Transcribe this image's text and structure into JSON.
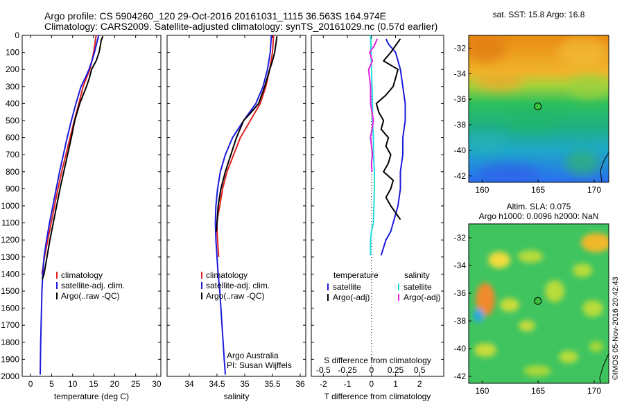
{
  "header": {
    "line1": "Argo profile: CS 5904260_120 29-Oct-2016 20161031_1115 36.563S 164.974E",
    "line2": "Climatology: CARS2009. Satellite-adjusted climatology: synTS_20161029.nc (0.57d earlier)"
  },
  "credits": {
    "org": "Argo Australia",
    "pi": "PI: Susan Wijffels",
    "stamp": "©IMOS 05-Nov-2016 20:42:43"
  },
  "colors": {
    "climatology": "#e02020",
    "satellite": "#1a1adc",
    "argo": "#000000",
    "satellite_salinity": "#22dede",
    "argo_salinity": "#e020e0"
  },
  "chart_data": [
    {
      "id": "temperature",
      "type": "line",
      "xlabel": "temperature (deg C)",
      "ylabel": "",
      "xlim": [
        -2,
        31
      ],
      "ylim": [
        2000,
        0
      ],
      "xticks": [
        0,
        5,
        10,
        15,
        20,
        25,
        30
      ],
      "yticks": [
        0,
        100,
        200,
        300,
        400,
        500,
        600,
        700,
        800,
        900,
        1000,
        1100,
        1200,
        1300,
        1400,
        1500,
        1600,
        1700,
        1800,
        1900,
        2000
      ],
      "legend": [
        "climatology",
        "satellite-adj. clim.",
        "Argo(..raw -QC)"
      ],
      "series": [
        {
          "name": "climatology",
          "color": "climatology",
          "x": [
            15.6,
            15.3,
            15.0,
            14.6,
            14.1,
            13.3,
            12.5,
            11.5,
            10.4,
            9.4,
            8.4,
            7.4,
            6.5,
            5.7,
            4.9,
            4.1,
            3.3,
            2.7
          ],
          "y": [
            0,
            50,
            100,
            150,
            200,
            250,
            300,
            400,
            500,
            600,
            700,
            800,
            900,
            1000,
            1100,
            1200,
            1300,
            1400
          ]
        },
        {
          "name": "satellite-adj. clim.",
          "color": "satellite",
          "x": [
            16.2,
            15.7,
            15.2,
            14.6,
            13.9,
            13.0,
            12.0,
            10.8,
            9.7,
            8.7,
            7.8,
            6.9,
            6.1,
            5.3,
            4.5,
            3.8,
            3.2,
            2.9,
            2.7,
            2.6,
            2.5,
            2.4,
            2.3
          ],
          "y": [
            0,
            50,
            100,
            150,
            200,
            250,
            300,
            400,
            500,
            600,
            700,
            800,
            900,
            1000,
            1100,
            1200,
            1300,
            1400,
            1500,
            1600,
            1700,
            1800,
            1990
          ]
        },
        {
          "name": "Argo(..raw -QC)",
          "color": "argo",
          "x": [
            17.2,
            16.8,
            16.6,
            16.3,
            15.6,
            14.5,
            14.0,
            13.3,
            12.5,
            11.7,
            11.1,
            10.5,
            9.7,
            8.8,
            7.9,
            7.0,
            6.2,
            5.4,
            4.6,
            3.9,
            3.2,
            2.8
          ],
          "y": [
            5,
            30,
            60,
            100,
            150,
            200,
            250,
            300,
            350,
            400,
            450,
            500,
            600,
            700,
            800,
            900,
            1000,
            1100,
            1200,
            1300,
            1400,
            1430
          ]
        }
      ]
    },
    {
      "id": "salinity",
      "type": "line",
      "xlabel": "salinity",
      "ylabel": "",
      "xlim": [
        33.6,
        36.1
      ],
      "ylim": [
        2000,
        0
      ],
      "xticks": [
        34,
        34.5,
        35,
        35.5,
        36
      ],
      "legend": [
        "climatology",
        "satellite-adj. clim.",
        "Argo(..raw -QC)"
      ],
      "series": [
        {
          "name": "climatology",
          "color": "climatology",
          "x": [
            35.52,
            35.5,
            35.45,
            35.38,
            35.28,
            35.1,
            34.92,
            34.8,
            34.68,
            34.6,
            34.55,
            34.52,
            34.5,
            34.5,
            34.51,
            34.52,
            34.53
          ],
          "y": [
            0,
            100,
            200,
            300,
            400,
            500,
            600,
            700,
            800,
            900,
            1000,
            1050,
            1100,
            1150,
            1200,
            1250,
            1300
          ]
        },
        {
          "name": "satellite-adj. clim.",
          "color": "satellite",
          "x": [
            35.48,
            35.46,
            35.41,
            35.33,
            35.2,
            34.98,
            34.78,
            34.65,
            34.56,
            34.51,
            34.48,
            34.47,
            34.48,
            34.5,
            34.52,
            34.55,
            34.57,
            34.59,
            34.61,
            34.63,
            34.65
          ],
          "y": [
            0,
            100,
            200,
            300,
            400,
            500,
            600,
            700,
            800,
            900,
            1000,
            1100,
            1200,
            1300,
            1400,
            1500,
            1600,
            1700,
            1800,
            1900,
            1990
          ]
        },
        {
          "name": "Argo(..raw -QC)",
          "color": "argo",
          "x": [
            35.58,
            35.54,
            35.5,
            35.45,
            35.36,
            35.25,
            35.12,
            34.98,
            34.85,
            34.75,
            34.65,
            34.57,
            34.52,
            34.5,
            34.49
          ],
          "y": [
            5,
            100,
            150,
            200,
            300,
            400,
            450,
            500,
            600,
            700,
            800,
            900,
            1000,
            1100,
            1150
          ]
        }
      ]
    },
    {
      "id": "difference",
      "type": "line",
      "xlabel": "T difference from climatology",
      "x2label": "S difference from climatology",
      "xlim": [
        -2.5,
        3.0
      ],
      "x2lim": [
        -0.625,
        0.75
      ],
      "ylim": [
        2000,
        0
      ],
      "xticks": [
        -2,
        -1,
        0,
        1,
        2
      ],
      "x2ticks": [
        -0.5,
        -0.25,
        0,
        0.25,
        0.5
      ],
      "x2ticklabels": [
        "-0.5",
        "-0.25",
        "0",
        "0.25",
        "0.5"
      ],
      "legend_titles": [
        "temperature",
        "salinity"
      ],
      "legend": [
        "satellite",
        "Argo(-adj)",
        "satellite",
        "Argo(-adj)"
      ],
      "series": [
        {
          "name": "satellite",
          "group": "temperature",
          "color": "satellite",
          "x": [
            0.6,
            0.7,
            1.0,
            1.2,
            1.3,
            1.4,
            1.4,
            1.3,
            1.3,
            1.2,
            1.2,
            1.1,
            1.0,
            0.9,
            0.8,
            0.6,
            0.4
          ],
          "y": [
            20,
            50,
            100,
            200,
            300,
            400,
            500,
            600,
            700,
            800,
            900,
            1000,
            1050,
            1100,
            1150,
            1200,
            1290
          ]
        },
        {
          "name": "Argo(-adj)",
          "group": "temperature",
          "color": "argo",
          "x": [
            1.2,
            1.0,
            0.8,
            0.5,
            1.1,
            1.0,
            0.9,
            0.6,
            0.2,
            0.3,
            0.5,
            0.4,
            0.7,
            0.6,
            0.8,
            0.7,
            0.5,
            0.9,
            0.8,
            0.6,
            0.8,
            1.2
          ],
          "y": [
            20,
            60,
            100,
            150,
            200,
            250,
            300,
            350,
            400,
            450,
            500,
            550,
            600,
            650,
            700,
            750,
            800,
            850,
            900,
            950,
            1000,
            1080
          ]
        },
        {
          "name": "satellite",
          "group": "salinity",
          "color": "satellite_salinity",
          "x": [
            -0.01,
            -0.005,
            0.0,
            0.005,
            0.01,
            0.01,
            0.02,
            0.02,
            0.03,
            0.03,
            0.025,
            0.02,
            0.0,
            -0.01,
            -0.01
          ],
          "y": [
            0,
            100,
            200,
            300,
            400,
            500,
            600,
            700,
            800,
            900,
            1000,
            1100,
            1150,
            1200,
            1290
          ]
        },
        {
          "name": "Argo(-adj)",
          "group": "salinity",
          "color": "argo_salinity",
          "x": [
            0.06,
            0.03,
            -0.02,
            0.01,
            -0.03,
            -0.01,
            -0.01,
            0.02,
            -0.01,
            0.01,
            0.0,
            0.005
          ],
          "y": [
            20,
            60,
            100,
            150,
            200,
            300,
            400,
            500,
            600,
            700,
            750,
            800
          ]
        }
      ]
    },
    {
      "id": "sst_map",
      "type": "heatmap",
      "title": "sat. SST: 15.8 Argo: 16.8",
      "xlim": [
        158.8,
        171.3
      ],
      "ylim": [
        -42.5,
        -31.0
      ],
      "xticks": [
        160,
        165,
        170
      ],
      "yticks": [
        -32,
        -34,
        -36,
        -38,
        -40,
        -42
      ],
      "marker": {
        "lon": 164.974,
        "lat": -36.563
      }
    },
    {
      "id": "sla_map",
      "type": "heatmap",
      "title": "Altim. SLA: 0.075",
      "subtitle": "Argo h1000: 0.0096 h2000: NaN",
      "xlim": [
        158.8,
        171.3
      ],
      "ylim": [
        -42.5,
        -31.0
      ],
      "xticks": [
        160,
        165,
        170
      ],
      "yticks": [
        -32,
        -34,
        -36,
        -38,
        -40,
        -42
      ],
      "marker": {
        "lon": 164.974,
        "lat": -36.563
      }
    }
  ]
}
